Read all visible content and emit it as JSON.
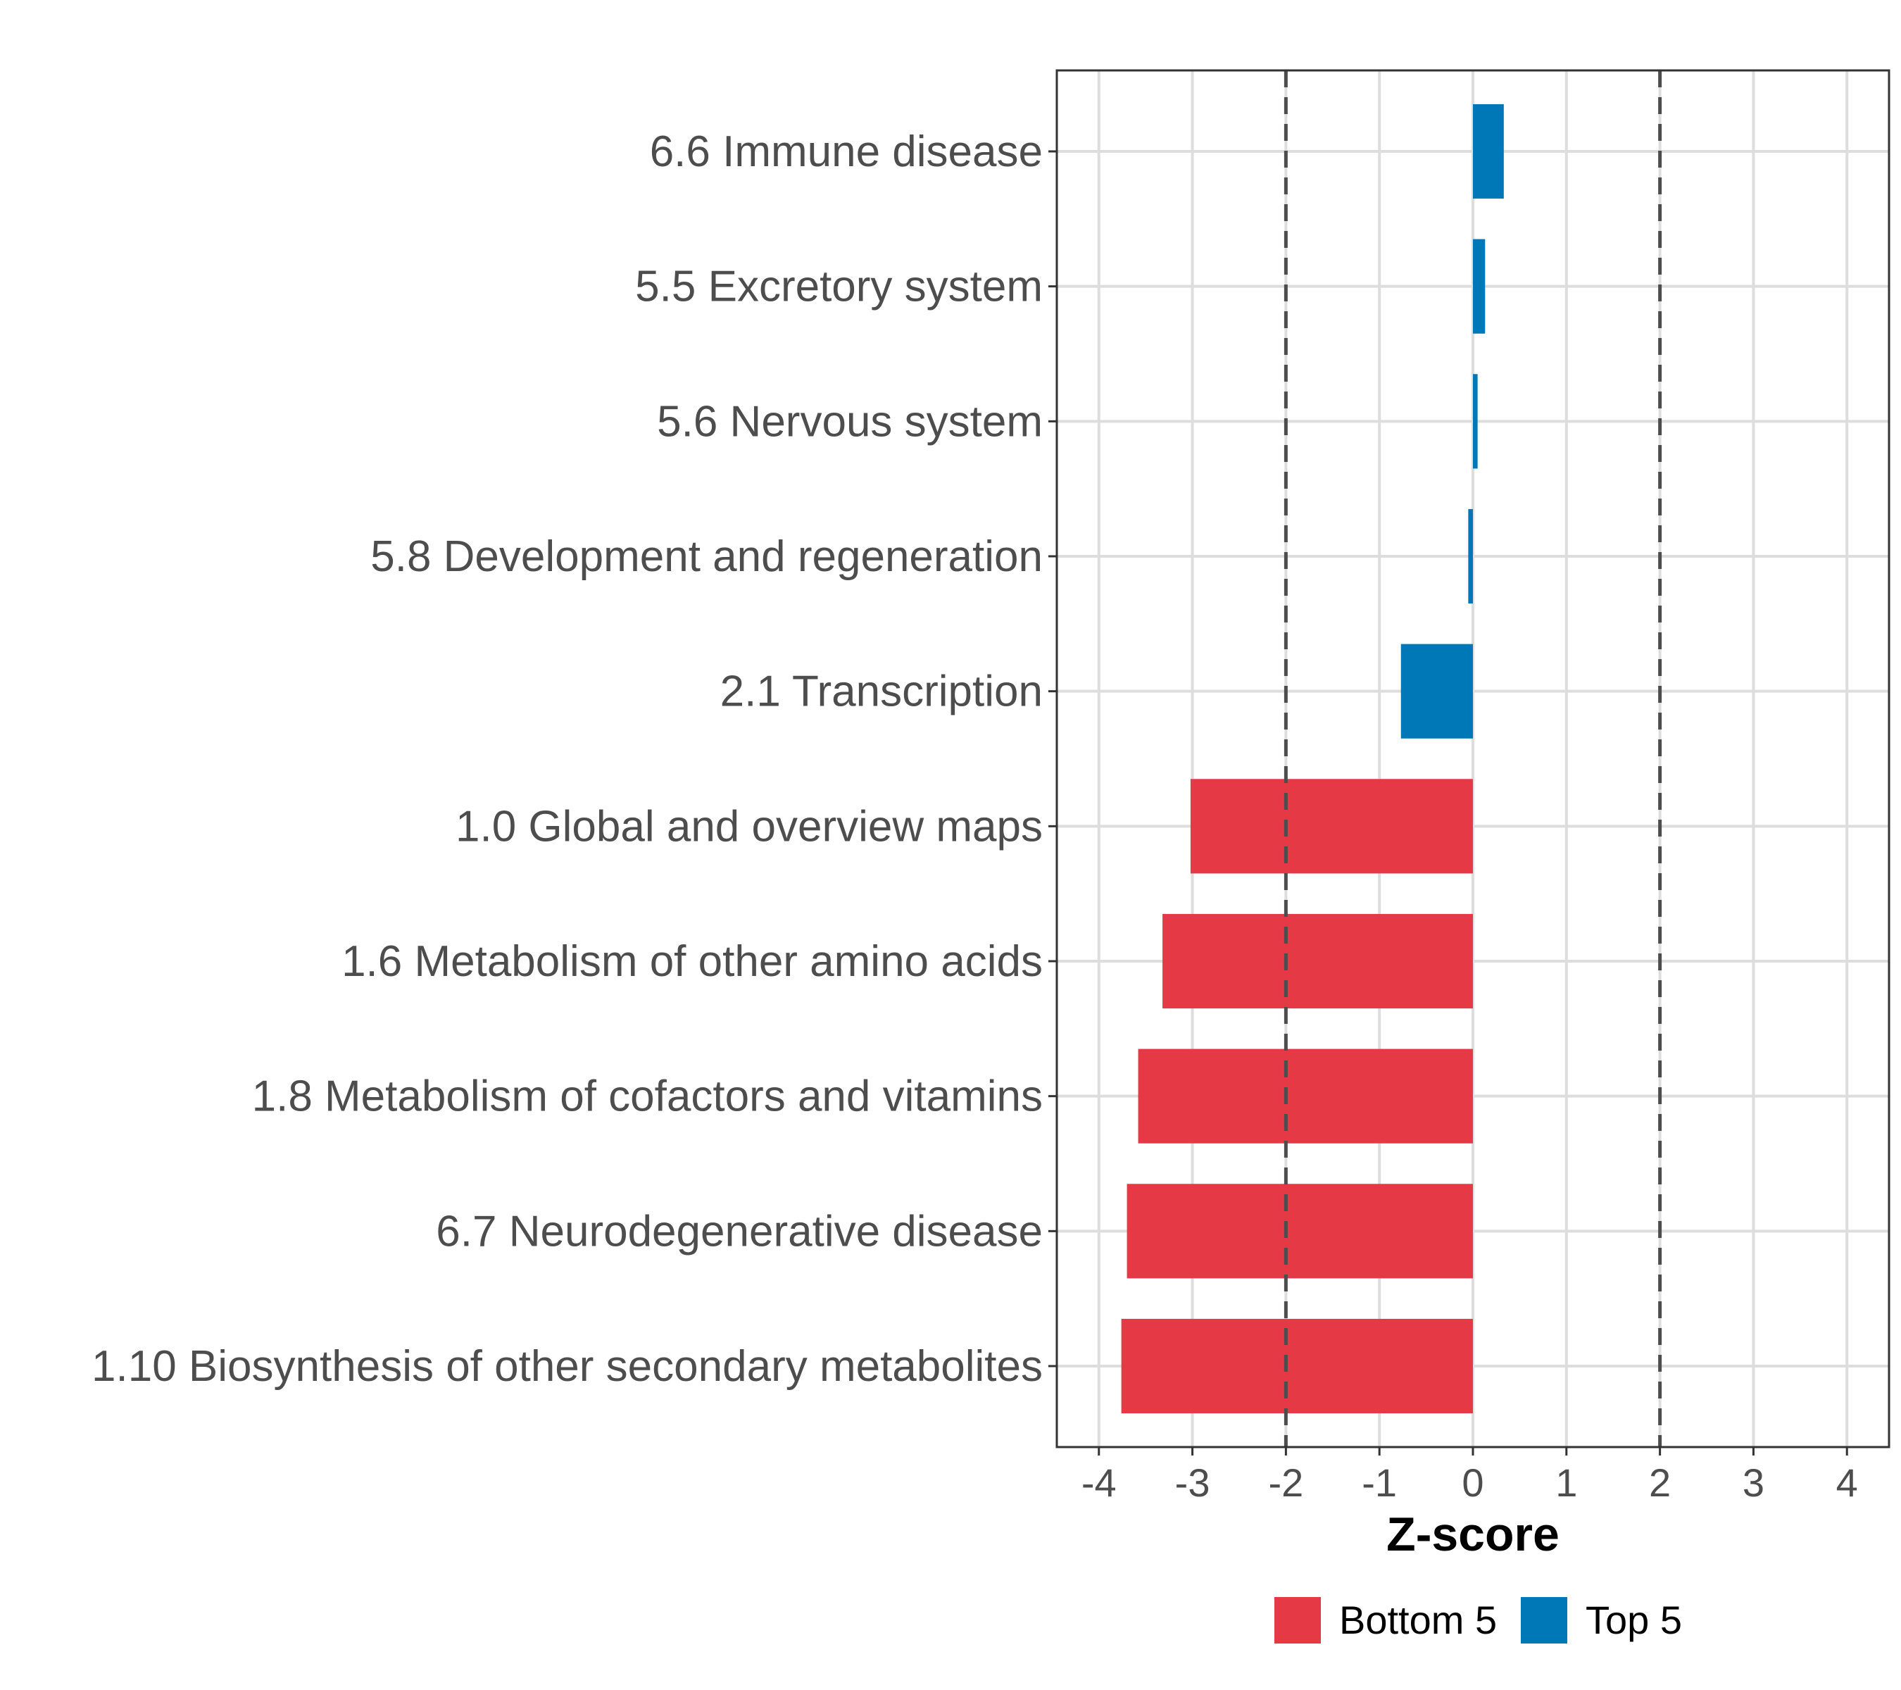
{
  "chart_data": {
    "type": "bar",
    "orientation": "horizontal",
    "title": "",
    "xlabel": "Z-score",
    "ylabel": "",
    "xlim": [
      -4.45,
      4.45
    ],
    "xticks": [
      -4,
      -3,
      -2,
      -1,
      0,
      1,
      2,
      3,
      4
    ],
    "xtick_labels": [
      "-4",
      "-3",
      "-2",
      "-1",
      "0",
      "1",
      "2",
      "3",
      "4"
    ],
    "grid": true,
    "reference_lines": [
      {
        "x": -2,
        "style": "dashed",
        "color": "#4d4d4d"
      },
      {
        "x": 2,
        "style": "dashed",
        "color": "#4d4d4d"
      }
    ],
    "categories": [
      "6.6 Immune disease",
      "5.5 Excretory system",
      "5.6 Nervous system",
      "5.8 Development and regeneration",
      "2.1 Transcription",
      "1.0 Global and overview maps",
      "1.6 Metabolism of other amino acids",
      "1.8 Metabolism of cofactors and vitamins",
      "6.7 Neurodegenerative disease",
      "1.10 Biosynthesis of other secondary metabolites"
    ],
    "values": [
      0.33,
      0.13,
      0.05,
      -0.05,
      -0.77,
      -3.02,
      -3.32,
      -3.58,
      -3.7,
      -3.76
    ],
    "groups": [
      "Top 5",
      "Top 5",
      "Top 5",
      "Top 5",
      "Top 5",
      "Bottom 5",
      "Bottom 5",
      "Bottom 5",
      "Bottom 5",
      "Bottom 5"
    ],
    "legend": {
      "position": "bottom",
      "entries": [
        {
          "label": "Bottom 5",
          "color": "#e63946"
        },
        {
          "label": "Top 5",
          "color": "#0077b6"
        }
      ]
    },
    "colors": {
      "Bottom 5": "#e63946",
      "Top 5": "#0077b6"
    }
  }
}
